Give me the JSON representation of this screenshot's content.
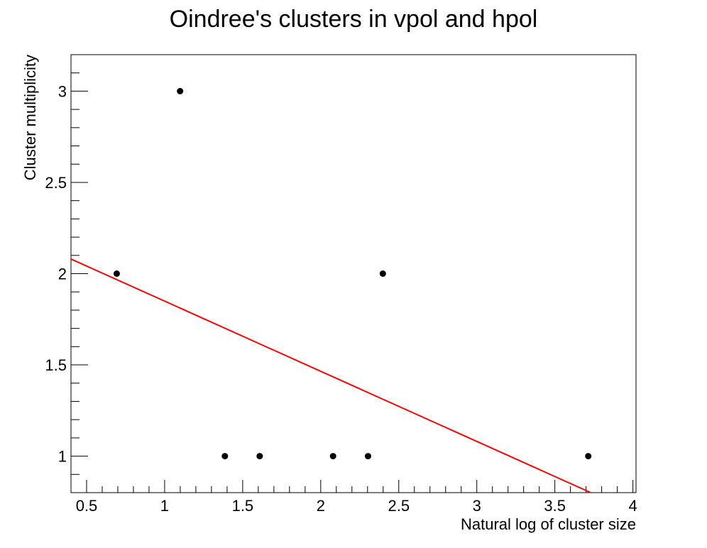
{
  "chart_data": {
    "type": "scatter",
    "title": "Oindree's clusters in vpol and hpol",
    "xlabel": "Natural log of cluster size",
    "ylabel": "Cluster multiplicity",
    "xlim": [
      0.4,
      4.02
    ],
    "ylim": [
      0.8,
      3.2
    ],
    "x_ticks": [
      "0.5",
      "1",
      "1.5",
      "2",
      "2.5",
      "3",
      "3.5",
      "4"
    ],
    "y_ticks": [
      "1",
      "1.5",
      "2",
      "2.5",
      "3"
    ],
    "grid": false,
    "series": [
      {
        "type": "scatter",
        "points": [
          {
            "x": 0.693,
            "y": 2
          },
          {
            "x": 1.099,
            "y": 3
          },
          {
            "x": 1.386,
            "y": 1
          },
          {
            "x": 1.609,
            "y": 1
          },
          {
            "x": 2.079,
            "y": 1
          },
          {
            "x": 2.303,
            "y": 1
          },
          {
            "x": 2.398,
            "y": 2
          },
          {
            "x": 3.714,
            "y": 1
          }
        ],
        "color": "#000000"
      },
      {
        "type": "line",
        "points": [
          {
            "x": 0.4,
            "y": 2.08
          },
          {
            "x": 3.73,
            "y": 0.8
          }
        ],
        "color": "#ff0000"
      }
    ]
  }
}
